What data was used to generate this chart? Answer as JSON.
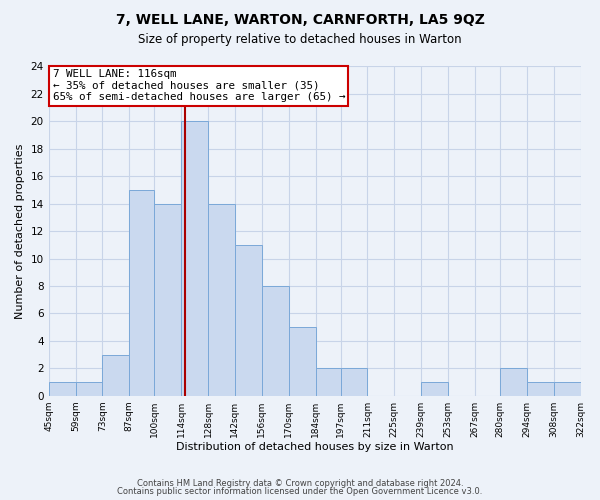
{
  "title": "7, WELL LANE, WARTON, CARNFORTH, LA5 9QZ",
  "subtitle": "Size of property relative to detached houses in Warton",
  "xlabel": "Distribution of detached houses by size in Warton",
  "ylabel": "Number of detached properties",
  "bar_edges": [
    45,
    59,
    73,
    87,
    100,
    114,
    128,
    142,
    156,
    170,
    184,
    197,
    211,
    225,
    239,
    253,
    267,
    280,
    294,
    308,
    322
  ],
  "bar_heights": [
    1,
    1,
    3,
    15,
    14,
    20,
    14,
    11,
    8,
    5,
    2,
    2,
    0,
    0,
    1,
    0,
    0,
    2,
    1,
    1
  ],
  "tick_labels": [
    "45sqm",
    "59sqm",
    "73sqm",
    "87sqm",
    "100sqm",
    "114sqm",
    "128sqm",
    "142sqm",
    "156sqm",
    "170sqm",
    "184sqm",
    "197sqm",
    "211sqm",
    "225sqm",
    "239sqm",
    "253sqm",
    "267sqm",
    "280sqm",
    "294sqm",
    "308sqm",
    "322sqm"
  ],
  "bar_color": "#cad9ef",
  "bar_edge_color": "#7aa8d8",
  "property_line_x": 116,
  "property_line_color": "#aa0000",
  "annotation_line1": "7 WELL LANE: 116sqm",
  "annotation_line2": "← 35% of detached houses are smaller (35)",
  "annotation_line3": "65% of semi-detached houses are larger (65) →",
  "annotation_box_color": "#ffffff",
  "annotation_box_edge": "#cc0000",
  "ylim": [
    0,
    24
  ],
  "yticks": [
    0,
    2,
    4,
    6,
    8,
    10,
    12,
    14,
    16,
    18,
    20,
    22,
    24
  ],
  "grid_color": "#c8d4e8",
  "footer_line1": "Contains HM Land Registry data © Crown copyright and database right 2024.",
  "footer_line2": "Contains public sector information licensed under the Open Government Licence v3.0.",
  "bg_color": "#edf2f9"
}
